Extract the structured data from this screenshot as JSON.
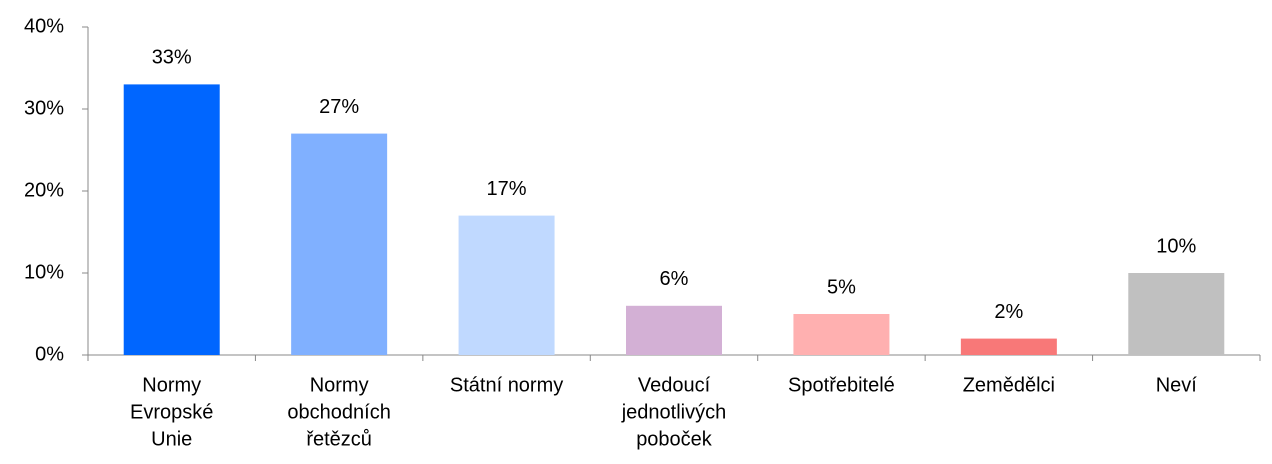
{
  "chart_data": {
    "type": "bar",
    "categories": [
      [
        "Normy",
        "Evropské",
        "Unie"
      ],
      [
        "Normy",
        "obchodních",
        "řetězců"
      ],
      [
        "Státní normy"
      ],
      [
        "Vedoucí",
        "jednotlivých",
        "poboček"
      ],
      [
        "Spotřebitelé"
      ],
      [
        "Zemědělci"
      ],
      [
        "Neví"
      ]
    ],
    "values": [
      33,
      27,
      17,
      6,
      5,
      2,
      10
    ],
    "value_labels": [
      "33%",
      "27%",
      "17%",
      "6%",
      "5%",
      "2%",
      "10%"
    ],
    "colors": [
      "#0066ff",
      "#80b0ff",
      "#c0d9ff",
      "#d3b0d5",
      "#ffb0b0",
      "#f87878",
      "#c0c0c0"
    ],
    "ylim": [
      0,
      40
    ],
    "yticks": [
      {
        "value": 0,
        "label": "0%"
      },
      {
        "value": 10,
        "label": "10%"
      },
      {
        "value": 20,
        "label": "20%"
      },
      {
        "value": 30,
        "label": "30%"
      },
      {
        "value": 40,
        "label": "40%"
      }
    ],
    "grid": false
  }
}
